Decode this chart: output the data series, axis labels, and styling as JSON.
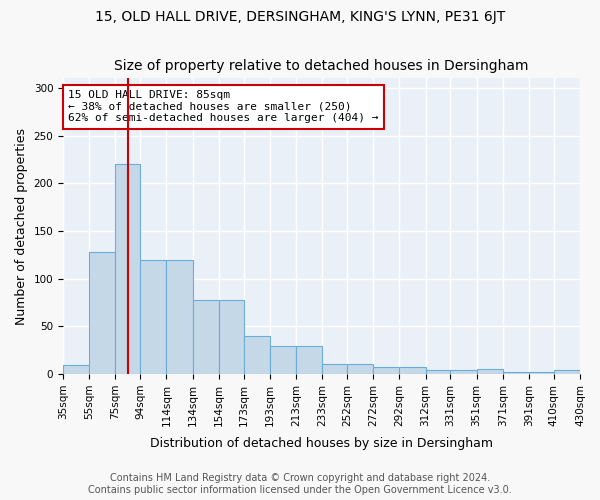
{
  "title1": "15, OLD HALL DRIVE, DERSINGHAM, KING'S LYNN, PE31 6JT",
  "title2": "Size of property relative to detached houses in Dersingham",
  "xlabel": "Distribution of detached houses by size in Dersingham",
  "ylabel": "Number of detached properties",
  "bin_edges": [
    35,
    55,
    75,
    94,
    114,
    134,
    154,
    173,
    193,
    213,
    233,
    252,
    272,
    292,
    312,
    331,
    351,
    371,
    391,
    410,
    430
  ],
  "bar_heights": [
    9,
    128,
    220,
    120,
    120,
    78,
    78,
    40,
    29,
    29,
    11,
    11,
    7,
    7,
    4,
    4,
    5,
    2,
    2,
    4
  ],
  "bar_color": "#c5d8e8",
  "bar_edge_color": "#6aaed6",
  "bar_edge_width": 0.8,
  "property_size": 85,
  "red_line_color": "#cc0000",
  "annotation_text": "15 OLD HALL DRIVE: 85sqm\n← 38% of detached houses are smaller (250)\n62% of semi-detached houses are larger (404) →",
  "annotation_box_color": "#ffffff",
  "annotation_box_edge_color": "#cc0000",
  "ylim": [
    0,
    310
  ],
  "yticks": [
    0,
    50,
    100,
    150,
    200,
    250,
    300
  ],
  "background_color": "#eaf0f8",
  "grid_color": "#ffffff",
  "footer_line1": "Contains HM Land Registry data © Crown copyright and database right 2024.",
  "footer_line2": "Contains public sector information licensed under the Open Government Licence v3.0.",
  "title1_fontsize": 10,
  "title2_fontsize": 10,
  "xlabel_fontsize": 9,
  "ylabel_fontsize": 9,
  "tick_fontsize": 7.5,
  "annotation_fontsize": 8,
  "footer_fontsize": 7
}
